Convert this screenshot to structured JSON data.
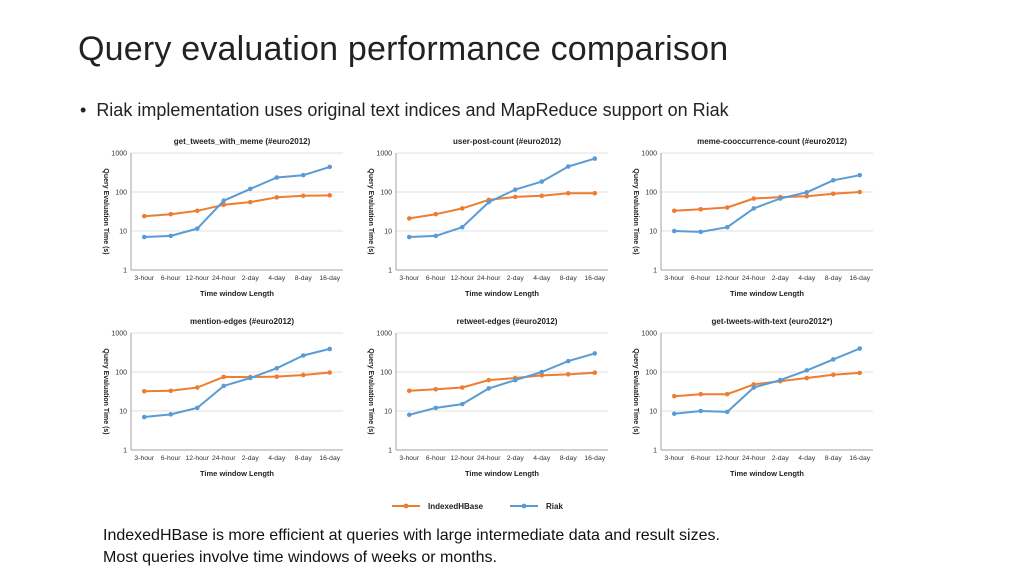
{
  "slide": {
    "title": "Query evaluation performance comparison",
    "bullet": "Riak implementation uses original text indices and MapReduce support on Riak",
    "bullet_marker": "•",
    "footnote_line1": "IndexedHBase is more efficient at queries with large intermediate data and result sizes.",
    "footnote_line2": "Most queries involve time windows of weeks or months."
  },
  "colors": {
    "indexedhbase": "#ED7D31",
    "riak": "#5B9BD5",
    "grid": "#d9d9d9",
    "axis": "#8c8c8c"
  },
  "legend": {
    "series": [
      "IndexedHBase",
      "Riak"
    ]
  },
  "chart_data": [
    {
      "type": "line",
      "title": "get_tweets_with_meme (#euro2012)",
      "xlabel": "Time window Length",
      "ylabel": "Query Evaluation Time (s)",
      "yscale": "log",
      "ylim": [
        1,
        1000
      ],
      "yticks": [
        "1",
        "10",
        "100",
        "1000"
      ],
      "categories": [
        "3-hour",
        "6-hour",
        "12-hour",
        "24-hour",
        "2-day",
        "4-day",
        "8-day",
        "16-day"
      ],
      "series": [
        {
          "name": "IndexedHBase",
          "values": [
            24,
            27,
            33,
            47,
            55,
            73,
            80,
            82
          ]
        },
        {
          "name": "Riak",
          "values": [
            7,
            7.5,
            11.5,
            60,
            120,
            235,
            270,
            440
          ]
        }
      ],
      "grid": true
    },
    {
      "type": "line",
      "title": "user-post-count (#euro2012)",
      "xlabel": "Time window Length",
      "ylabel": "Query Evaluation Time (s)",
      "yscale": "log",
      "ylim": [
        1,
        1000
      ],
      "yticks": [
        "1",
        "10",
        "100",
        "1000"
      ],
      "categories": [
        "3-hour",
        "6-hour",
        "12-hour",
        "24-hour",
        "2-day",
        "4-day",
        "8-day",
        "16-day"
      ],
      "series": [
        {
          "name": "IndexedHBase",
          "values": [
            21,
            27,
            38,
            63,
            75,
            80,
            93,
            93
          ]
        },
        {
          "name": "Riak",
          "values": [
            7,
            7.5,
            12.5,
            55,
            115,
            185,
            450,
            720
          ]
        }
      ],
      "grid": true
    },
    {
      "type": "line",
      "title": "meme-cooccurrence-count (#euro2012)",
      "xlabel": "Time window Length",
      "ylabel": "Query Evaluation Time (s)",
      "yscale": "log",
      "ylim": [
        1,
        1000
      ],
      "yticks": [
        "1",
        "10",
        "100",
        "1000"
      ],
      "categories": [
        "3-hour",
        "6-hour",
        "12-hour",
        "24-hour",
        "2-day",
        "4-day",
        "8-day",
        "16-day"
      ],
      "series": [
        {
          "name": "IndexedHBase",
          "values": [
            33,
            36,
            40,
            68,
            74,
            78,
            90,
            100
          ]
        },
        {
          "name": "Riak",
          "values": [
            10,
            9.5,
            12.5,
            38,
            68,
            98,
            200,
            270
          ]
        }
      ],
      "grid": true
    },
    {
      "type": "line",
      "title": "mention-edges (#euro2012)",
      "xlabel": "Time window Length",
      "ylabel": "Query Evaluation Time (s)",
      "yscale": "log",
      "ylim": [
        1,
        1000
      ],
      "yticks": [
        "1",
        "10",
        "100",
        "1000"
      ],
      "categories": [
        "3-hour",
        "6-hour",
        "12-hour",
        "24-hour",
        "2-day",
        "4-day",
        "8-day",
        "16-day"
      ],
      "series": [
        {
          "name": "IndexedHBase",
          "values": [
            32,
            33,
            40,
            75,
            74,
            76,
            84,
            97
          ]
        },
        {
          "name": "Riak",
          "values": [
            7,
            8.2,
            12,
            44,
            70,
            125,
            265,
            390
          ]
        }
      ],
      "grid": true
    },
    {
      "type": "line",
      "title": "retweet-edges (#euro2012)",
      "xlabel": "Time window Length",
      "ylabel": "Query Evaluation Time (s)",
      "yscale": "log",
      "ylim": [
        1,
        1000
      ],
      "yticks": [
        "1",
        "10",
        "100",
        "1000"
      ],
      "categories": [
        "3-hour",
        "6-hour",
        "12-hour",
        "24-hour",
        "2-day",
        "4-day",
        "8-day",
        "16-day"
      ],
      "series": [
        {
          "name": "IndexedHBase",
          "values": [
            33,
            36,
            40,
            62,
            70,
            82,
            87,
            96
          ]
        },
        {
          "name": "Riak",
          "values": [
            8,
            12,
            15,
            38,
            62,
            100,
            190,
            300
          ]
        }
      ],
      "grid": true
    },
    {
      "type": "line",
      "title": "get-tweets-with-text (euro2012*)",
      "xlabel": "Time window Length",
      "ylabel": "Query Evaluation Time (s)",
      "yscale": "log",
      "ylim": [
        1,
        1000
      ],
      "yticks": [
        "1",
        "10",
        "100",
        "1000"
      ],
      "categories": [
        "3-hour",
        "6-hour",
        "12-hour",
        "24-hour",
        "2-day",
        "4-day",
        "8-day",
        "16-day"
      ],
      "series": [
        {
          "name": "IndexedHBase",
          "values": [
            24,
            27,
            27,
            48,
            58,
            70,
            85,
            95
          ]
        },
        {
          "name": "Riak",
          "values": [
            8.5,
            10,
            9.5,
            40,
            62,
            110,
            210,
            400
          ]
        }
      ],
      "grid": true
    }
  ]
}
